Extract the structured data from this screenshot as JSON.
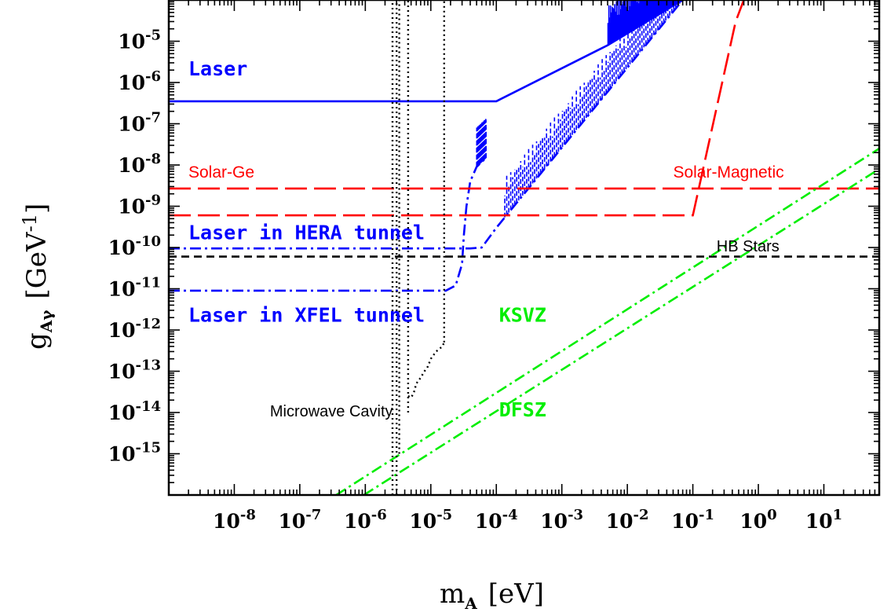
{
  "chart_data": {
    "type": "line",
    "xlabel": "m",
    "xlabel_sub": "A",
    "xlabel_unit": "[eV]",
    "ylabel": "g",
    "ylabel_sub": "Aγ",
    "ylabel_unit": "[GeV",
    "ylabel_unit_sup": "-1",
    "ylabel_unit_close": "]",
    "x_log": true,
    "y_log": true,
    "xlim": [
      1e-09,
      70
    ],
    "ylim": [
      1e-16,
      0.0001
    ],
    "x_ticks": [
      {
        "base": "10",
        "exp": "-8",
        "value": 1e-08
      },
      {
        "base": "10",
        "exp": "-7",
        "value": 1e-07
      },
      {
        "base": "10",
        "exp": "-6",
        "value": 1e-06
      },
      {
        "base": "10",
        "exp": "-5",
        "value": 1e-05
      },
      {
        "base": "10",
        "exp": "-4",
        "value": 0.0001
      },
      {
        "base": "10",
        "exp": "-3",
        "value": 0.001
      },
      {
        "base": "10",
        "exp": "-2",
        "value": 0.01
      },
      {
        "base": "10",
        "exp": "-1",
        "value": 0.1
      },
      {
        "base": "10",
        "exp": "0",
        "value": 1
      },
      {
        "base": "10",
        "exp": "1",
        "value": 10
      }
    ],
    "y_ticks": [
      {
        "base": "10",
        "exp": "-15",
        "value": 1e-15
      },
      {
        "base": "10",
        "exp": "-14",
        "value": 1e-14
      },
      {
        "base": "10",
        "exp": "-13",
        "value": 1e-13
      },
      {
        "base": "10",
        "exp": "-12",
        "value": 1e-12
      },
      {
        "base": "10",
        "exp": "-11",
        "value": 1e-11
      },
      {
        "base": "10",
        "exp": "-10",
        "value": 1e-10
      },
      {
        "base": "10",
        "exp": "-9",
        "value": 1e-09
      },
      {
        "base": "10",
        "exp": "-8",
        "value": 1e-08
      },
      {
        "base": "10",
        "exp": "-7",
        "value": 1e-07
      },
      {
        "base": "10",
        "exp": "-6",
        "value": 1e-06
      },
      {
        "base": "10",
        "exp": "-5",
        "value": 1e-05
      }
    ],
    "series": [
      {
        "name": "Laser",
        "color": "#0000ff",
        "style": "solid",
        "oscillating": true,
        "x": [
          1e-09,
          0.0001,
          0.005,
          0.07
        ],
        "y": [
          3.5e-07,
          3.5e-07,
          8e-06,
          0.0001
        ]
      },
      {
        "name": "Laser in HERA tunnel",
        "color": "#0000ff",
        "style": "dashdot",
        "oscillating": true,
        "x": [
          1e-09,
          4e-05,
          6e-05,
          0.0001,
          0.00013,
          0.07
        ],
        "y": [
          9.5e-11,
          9.5e-11,
          1e-10,
          3e-10,
          5e-10,
          0.0001
        ]
      },
      {
        "name": "Laser in XFEL tunnel",
        "color": "#0000ff",
        "style": "dashdot",
        "oscillating": true,
        "x": [
          1e-09,
          1.7e-05,
          2.4e-05,
          3e-05,
          3.2e-05,
          3.5e-05,
          4e-05,
          5e-05,
          7e-05
        ],
        "y": [
          9e-12,
          9e-12,
          1.2e-11,
          4e-11,
          2e-10,
          1e-09,
          4e-09,
          9e-09,
          1.5e-08
        ]
      },
      {
        "name": "Solar-Ge",
        "color": "#ff0000",
        "style": "longdash",
        "x": [
          1e-09,
          70
        ],
        "y": [
          2.7e-09,
          2.7e-09
        ]
      },
      {
        "name": "Solar-Magnetic",
        "color": "#ff0000",
        "style": "longdash",
        "x": [
          1e-09,
          0.1,
          0.45,
          0.6
        ],
        "y": [
          6e-10,
          6e-10,
          3e-05,
          0.0001
        ]
      },
      {
        "name": "HB Stars",
        "color": "#000000",
        "style": "dashed",
        "x": [
          1e-09,
          70
        ],
        "y": [
          6e-11,
          6e-11
        ]
      },
      {
        "name": "KSVZ",
        "color": "#00ee00",
        "style": "dashdot",
        "x": [
          3.6e-07,
          70
        ],
        "y": [
          1e-16,
          2.5e-08
        ]
      },
      {
        "name": "DFSZ",
        "color": "#00ee00",
        "style": "dashdot",
        "x": [
          9.5e-07,
          70
        ],
        "y": [
          1e-16,
          8e-09
        ]
      },
      {
        "name": "Microwave Cavity",
        "color": "#000000",
        "style": "dotted",
        "segments": [
          {
            "x": [
              2.6e-06,
              2.6e-06
            ],
            "y": [
              1e-16,
              0.0001
            ]
          },
          {
            "x": [
              3e-06,
              3e-06
            ],
            "y": [
              1e-16,
              0.0001
            ]
          },
          {
            "x": [
              3.3e-06,
              3.3e-06
            ],
            "y": [
              1e-15,
              0.0001
            ]
          },
          {
            "x": [
              4.5e-06,
              4.5e-06
            ],
            "y": [
              1e-14,
              0.0001
            ]
          },
          {
            "x": [
              4.5e-06,
              5e-06,
              5.5e-06,
              6e-06,
              7e-06,
              8e-06,
              9e-06,
              1e-05,
              1.2e-05,
              1.5e-05,
              1.6e-05
            ],
            "y": [
              2.5e-14,
              2.3e-14,
              3e-14,
              5e-14,
              7e-14,
              1e-13,
              1.3e-13,
              2e-13,
              3e-13,
              4e-13,
              5e-13
            ]
          },
          {
            "x": [
              1.6e-05,
              1.6e-05
            ],
            "y": [
              5e-13,
              0.0001
            ]
          }
        ]
      }
    ],
    "labels": [
      {
        "text": "Laser",
        "class": "lab-blue",
        "x": 1e-09,
        "y": 1.5e-06
      },
      {
        "text": "Solar-Ge",
        "class": "lab-red",
        "x": 1e-09,
        "y": 5e-09
      },
      {
        "text": "Laser in HERA tunnel",
        "class": "lab-blue",
        "x": 1e-09,
        "y": 1.6e-10
      },
      {
        "text": "HB Stars",
        "class": "lab-black",
        "x": 0.23,
        "y": 8e-11
      },
      {
        "text": "Laser in XFEL tunnel",
        "class": "lab-blue",
        "x": 1e-09,
        "y": 1.6e-12
      },
      {
        "text": "KSVZ",
        "class": "lab-green",
        "x": 0.00011,
        "y": 1.6e-12
      },
      {
        "text": "DFSZ",
        "class": "lab-green",
        "x": 0.00011,
        "y": 8e-15
      },
      {
        "text": "Microwave Cavity",
        "class": "lab-black",
        "x": 3.5e-08,
        "y": 8e-15
      },
      {
        "text": "Solar-Magnetic",
        "class": "lab-red",
        "x": 0.05,
        "y": 5e-09
      }
    ]
  }
}
